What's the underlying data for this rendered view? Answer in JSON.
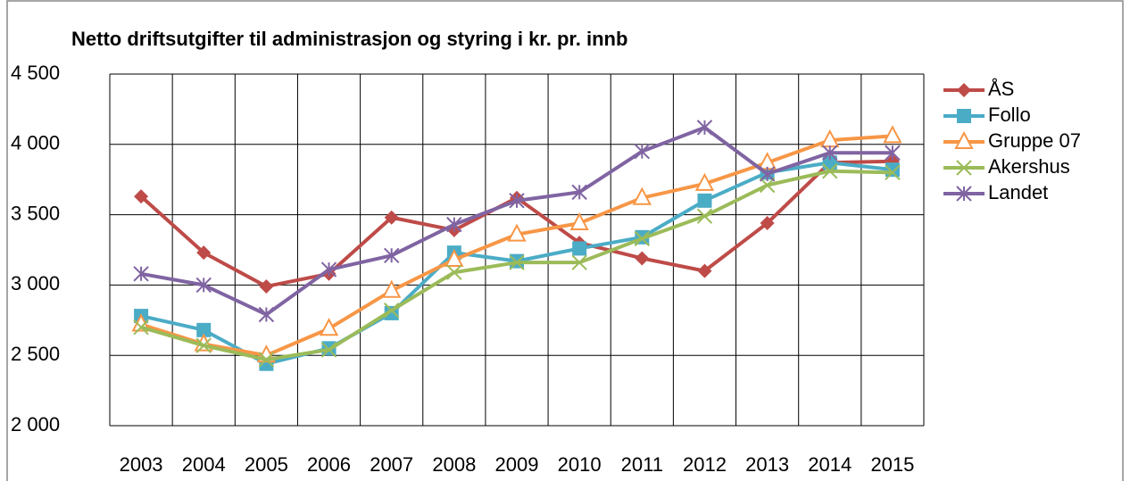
{
  "chart_data": {
    "type": "line",
    "title": "Netto driftsutgifter til administrasjon og styring i kr. pr. innb",
    "categories": [
      "2003",
      "2004",
      "2005",
      "2006",
      "2007",
      "2008",
      "2009",
      "2010",
      "2011",
      "2012",
      "2013",
      "2014",
      "2015"
    ],
    "series": [
      {
        "name": "ÅS",
        "color": "#be4b48",
        "marker": "diamond",
        "values": [
          3630,
          3230,
          2990,
          3080,
          3480,
          3390,
          3620,
          3300,
          3190,
          3100,
          3440,
          3870,
          3880
        ]
      },
      {
        "name": "Follo",
        "color": "#4bacc6",
        "marker": "square",
        "values": [
          2780,
          2680,
          2440,
          2550,
          2800,
          3230,
          3170,
          3260,
          3340,
          3600,
          3800,
          3870,
          3820
        ]
      },
      {
        "name": "Gruppe 07",
        "color": "#f79646",
        "marker": "triangle",
        "values": [
          2720,
          2580,
          2500,
          2690,
          2960,
          3180,
          3360,
          3440,
          3620,
          3720,
          3870,
          4030,
          4060
        ]
      },
      {
        "name": "Akershus",
        "color": "#9bbb59",
        "marker": "x",
        "values": [
          2700,
          2570,
          2470,
          2540,
          2820,
          3090,
          3160,
          3160,
          3330,
          3490,
          3710,
          3810,
          3800
        ]
      },
      {
        "name": "Landet",
        "color": "#8064a2",
        "marker": "star",
        "values": [
          3080,
          3000,
          2790,
          3110,
          3210,
          3430,
          3600,
          3660,
          3950,
          4120,
          3790,
          3940,
          3940
        ]
      }
    ],
    "ylim": [
      2000,
      4500
    ],
    "yticks": [
      {
        "value": 2000,
        "label": "2 000"
      },
      {
        "value": 2500,
        "label": "2 500"
      },
      {
        "value": 3000,
        "label": "3 000"
      },
      {
        "value": 3500,
        "label": "3 500"
      },
      {
        "value": 4000,
        "label": "4 000"
      },
      {
        "value": 4500,
        "label": "4 500"
      }
    ],
    "grid": true,
    "legend": "right"
  }
}
